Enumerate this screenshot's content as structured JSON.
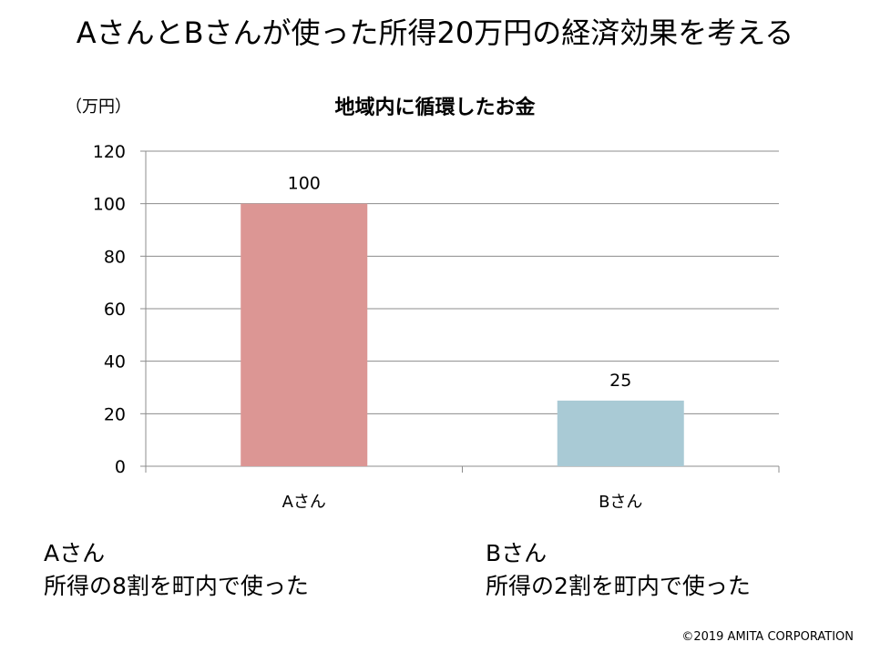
{
  "title": "AさんとBさんが使った所得20万円の経済効果を考える",
  "unit_label": "（万円）",
  "chart_data": {
    "type": "bar",
    "title": "地域内に循環したお金",
    "ylabel": "（万円）",
    "categories": [
      "Aさん",
      "Bさん"
    ],
    "values": [
      100,
      25
    ],
    "colors": [
      "#dc9694",
      "#a9cad5"
    ],
    "ylim": [
      0,
      120
    ],
    "yticks": [
      0,
      20,
      40,
      60,
      80,
      100,
      120
    ],
    "grid": true,
    "legend": "none"
  },
  "notes": [
    {
      "name": "Aさん",
      "text": "所得の8割を町内で使った"
    },
    {
      "name": "Bさん",
      "text": "所得の2割を町内で使った"
    }
  ],
  "copyright": "©2019  AMITA CORPORATION"
}
